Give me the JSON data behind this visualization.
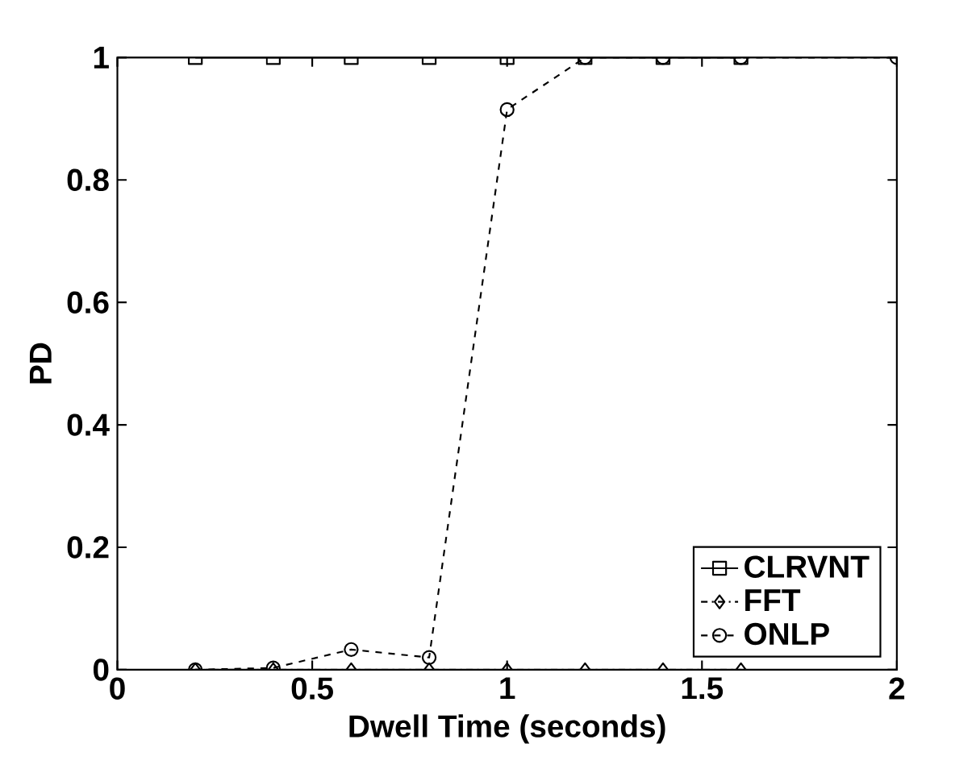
{
  "chart_data": {
    "type": "line",
    "xlabel": "Dwell Time (seconds)",
    "ylabel": "PD",
    "xlim": [
      0,
      2
    ],
    "ylim": [
      0,
      1
    ],
    "xticks": [
      0,
      0.5,
      1,
      1.5,
      2
    ],
    "yticks": [
      0,
      0.2,
      0.4,
      0.6,
      0.8,
      1
    ],
    "grid": false,
    "legend": "bottom right",
    "series": [
      {
        "name": "CLRVNT",
        "color": "#000000",
        "marker": "square",
        "line_style": "solid",
        "x": [
          0.2,
          0.4,
          0.6,
          0.8,
          1.0,
          1.2,
          1.4,
          1.6
        ],
        "values": [
          1,
          1,
          1,
          1,
          1,
          1,
          1,
          1
        ]
      },
      {
        "name": "FFT",
        "color": "#000000",
        "marker": "diamond",
        "line_style": "dashdot",
        "x": [
          0.2,
          0.4,
          0.6,
          0.8,
          1.0,
          1.2,
          1.4,
          1.6
        ],
        "values": [
          0,
          0,
          0,
          0,
          0,
          0,
          0,
          0
        ]
      },
      {
        "name": "ONLP",
        "color": "#000000",
        "marker": "circle",
        "line_style": "dashed",
        "x": [
          0.2,
          0.4,
          0.6,
          0.8,
          1.0,
          1.2,
          1.4,
          1.6,
          2.0
        ],
        "values": [
          0,
          0.003,
          0.033,
          0.02,
          0.915,
          1,
          1,
          1,
          1
        ]
      }
    ]
  }
}
